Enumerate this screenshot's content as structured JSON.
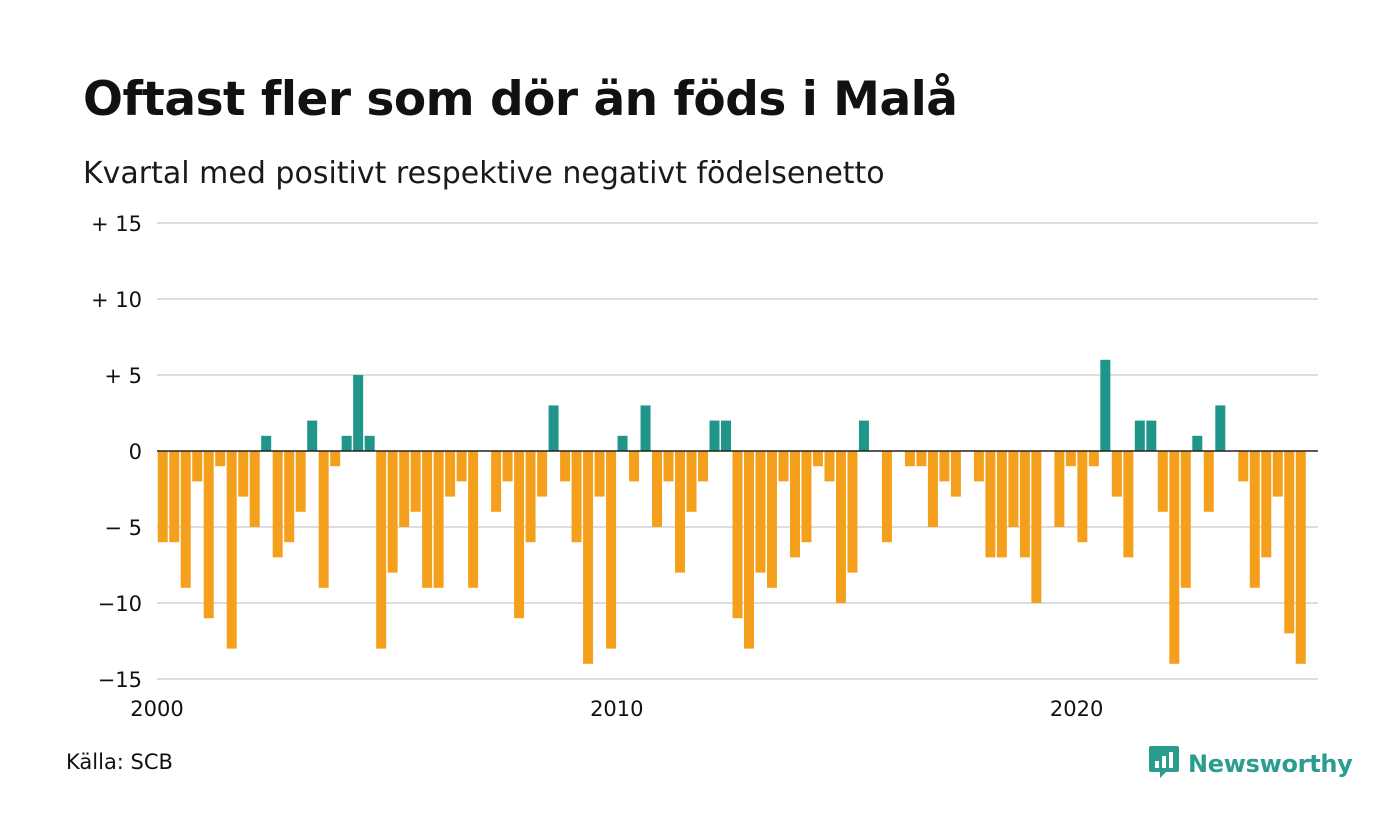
{
  "title": "Oftast fler som dör än föds i Malå",
  "subtitle": "Kvartal med positivt respektive negativt födelsenetto",
  "source": "Källa: SCB",
  "brand": "Newsworthy",
  "brand_icon": "newsworthy-logo-icon",
  "colors": {
    "positive": "#1f9689",
    "negative": "#f5a01d",
    "grid": "#dddddd",
    "zero": "#222222",
    "brand": "#2a9d8f"
  },
  "chart_data": {
    "type": "bar",
    "title": "Oftast fler som dör än föds i Malå",
    "subtitle": "Kvartal med positivt respektive negativt födelsenetto",
    "xlabel": "",
    "ylabel": "",
    "ylim": [
      -15,
      15
    ],
    "xlim": [
      2000,
      2025.25
    ],
    "y_ticks": [
      {
        "value": 15,
        "label": "+ 15"
      },
      {
        "value": 10,
        "label": "+ 10"
      },
      {
        "value": 5,
        "label": "+  5"
      },
      {
        "value": 0,
        "label": "0"
      },
      {
        "value": -5,
        "label": "− 5"
      },
      {
        "value": -10,
        "label": "−10"
      },
      {
        "value": -15,
        "label": "−15"
      }
    ],
    "x_ticks": [
      {
        "value": 2000,
        "label": "2000"
      },
      {
        "value": 2010,
        "label": "2010"
      },
      {
        "value": 2020,
        "label": "2020"
      }
    ],
    "grid": true,
    "legend": "none",
    "start_year": 2000,
    "periods_per_year": 4,
    "values": [
      -6,
      -6,
      -9,
      -2,
      -11,
      -1,
      -13,
      -3,
      -5,
      1,
      -7,
      -6,
      -4,
      2,
      -9,
      -1,
      1,
      5,
      1,
      -13,
      -8,
      -5,
      -4,
      -9,
      -9,
      -3,
      -2,
      -9,
      0,
      -4,
      -2,
      -11,
      -6,
      -3,
      3,
      -2,
      -6,
      -14,
      -3,
      -13,
      1,
      -2,
      3,
      -5,
      -2,
      -8,
      -4,
      -2,
      2,
      2,
      -11,
      -13,
      -8,
      -9,
      -2,
      -7,
      -6,
      -1,
      -2,
      -10,
      -8,
      2,
      0,
      -6,
      0,
      -1,
      -1,
      -5,
      -2,
      -3,
      0,
      -2,
      -7,
      -7,
      -5,
      -7,
      -10,
      0,
      -5,
      -1,
      -6,
      -1,
      6,
      -3,
      -7,
      2,
      2,
      -4,
      -14,
      -9,
      1,
      -4,
      3,
      0,
      -2,
      -9,
      -7,
      -3,
      -12,
      -14
    ]
  }
}
